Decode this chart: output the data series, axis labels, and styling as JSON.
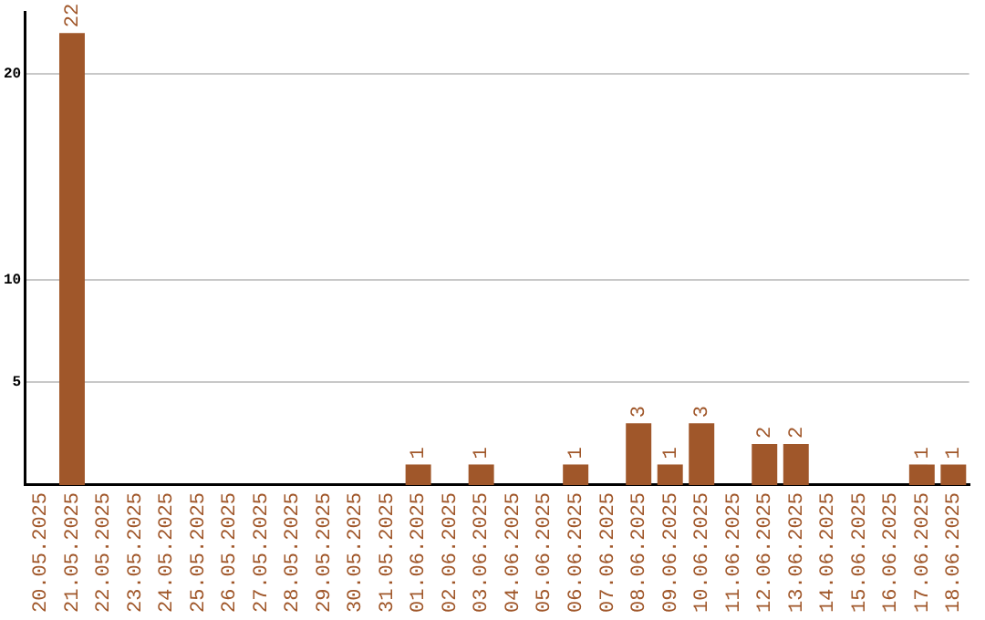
{
  "chart_data": {
    "type": "bar",
    "categories": [
      "20.05.2025",
      "21.05.2025",
      "22.05.2025",
      "23.05.2025",
      "24.05.2025",
      "25.05.2025",
      "26.05.2025",
      "27.05.2025",
      "28.05.2025",
      "29.05.2025",
      "30.05.2025",
      "31.05.2025",
      "01.06.2025",
      "02.06.2025",
      "03.06.2025",
      "04.06.2025",
      "05.06.2025",
      "06.06.2025",
      "07.06.2025",
      "08.06.2025",
      "09.06.2025",
      "10.06.2025",
      "11.06.2025",
      "12.06.2025",
      "13.06.2025",
      "14.06.2025",
      "15.06.2025",
      "16.06.2025",
      "17.06.2025",
      "18.06.2025"
    ],
    "values": [
      null,
      22,
      null,
      null,
      null,
      null,
      null,
      null,
      null,
      null,
      null,
      null,
      1,
      null,
      1,
      null,
      null,
      1,
      null,
      3,
      1,
      3,
      null,
      2,
      2,
      null,
      null,
      null,
      1,
      1
    ],
    "color": "#a0572a",
    "ylim": [
      0,
      23
    ],
    "yticks": [
      5,
      10,
      20
    ],
    "grid": "y",
    "data_labels": true,
    "legend": false
  }
}
